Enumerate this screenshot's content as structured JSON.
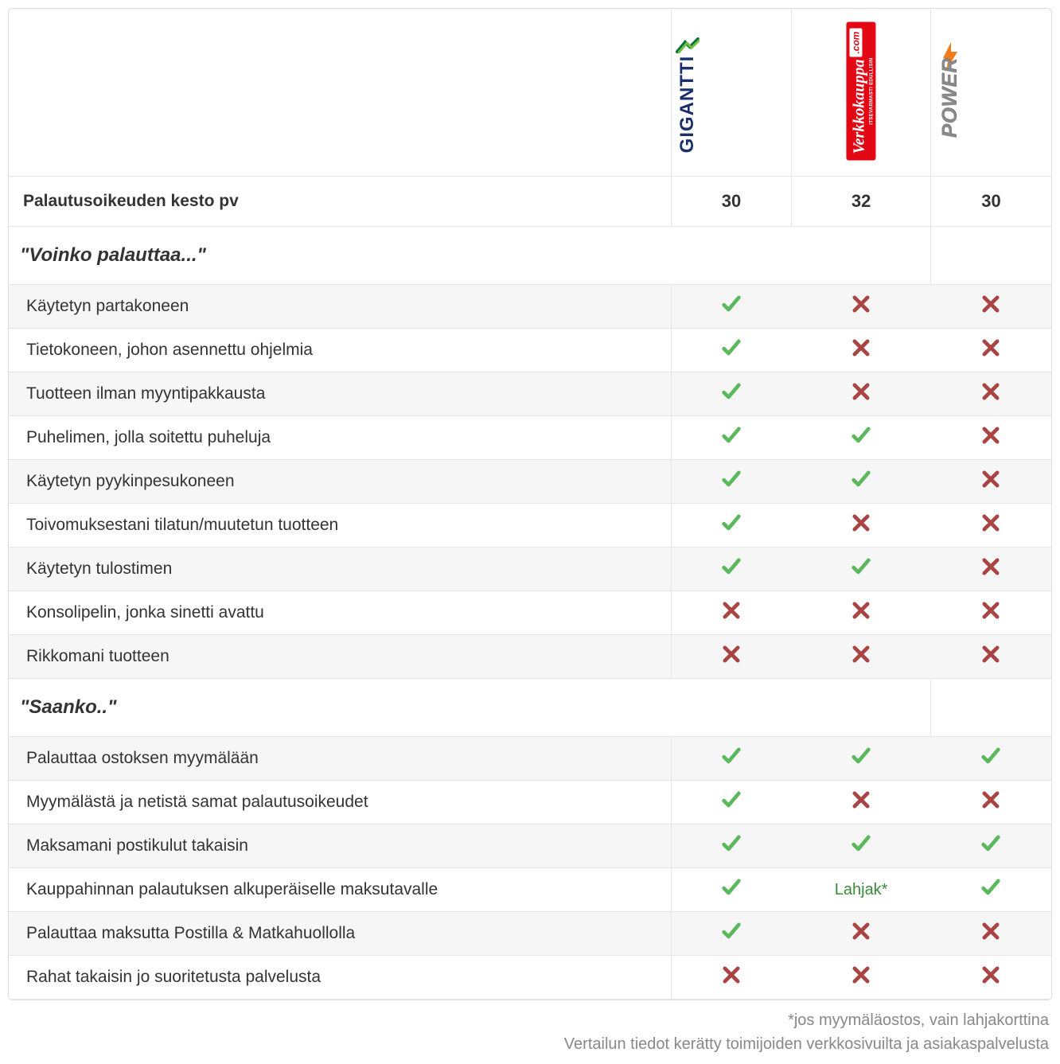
{
  "colors": {
    "check": "#5cb85c",
    "cross": "#a94442",
    "text_value": "#3a8a3a",
    "border": "#e5e5e5",
    "row_odd_bg": "#f6f6f6",
    "row_even_bg": "#ffffff",
    "footnote": "#888888",
    "gigantti_text": "#1a2e6b",
    "gigantti_arrow_dark": "#0a6b3a",
    "gigantti_arrow_light": "#6fbf44",
    "vk_bg": "#e30613",
    "vk_text": "#ffffff",
    "power_text": "#8a8a8a",
    "power_flash": "#f07d1a"
  },
  "brands": {
    "b1": {
      "name": "GIGANTTI"
    },
    "b2": {
      "main": "Verkkokauppa",
      "suffix": ".com",
      "sub": "ITSEVARMASTI EDULLISIN"
    },
    "b3": {
      "name": "POWER"
    }
  },
  "duration": {
    "label": "Palautusoikeuden kesto pv",
    "b1": "30",
    "b2": "32",
    "b3": "30"
  },
  "sections": [
    {
      "title": "\"Voinko palauttaa...\"",
      "rows": [
        {
          "label": "Käytetyn partakoneen",
          "v": [
            "check",
            "cross",
            "cross"
          ]
        },
        {
          "label": "Tietokoneen, johon asennettu ohjelmia",
          "v": [
            "check",
            "cross",
            "cross"
          ]
        },
        {
          "label": "Tuotteen ilman myyntipakkausta",
          "v": [
            "check",
            "cross",
            "cross"
          ]
        },
        {
          "label": "Puhelimen, jolla soitettu puheluja",
          "v": [
            "check",
            "check",
            "cross"
          ]
        },
        {
          "label": "Käytetyn pyykinpesukoneen",
          "v": [
            "check",
            "check",
            "cross"
          ]
        },
        {
          "label": "Toivomuksestani tilatun/muutetun tuotteen",
          "v": [
            "check",
            "cross",
            "cross"
          ]
        },
        {
          "label": "Käytetyn tulostimen",
          "v": [
            "check",
            "check",
            "cross"
          ]
        },
        {
          "label": "Konsolipelin, jonka sinetti avattu",
          "v": [
            "cross",
            "cross",
            "cross"
          ]
        },
        {
          "label": "Rikkomani tuotteen",
          "v": [
            "cross",
            "cross",
            "cross"
          ]
        }
      ]
    },
    {
      "title": "\"Saanko..\"",
      "rows": [
        {
          "label": "Palauttaa ostoksen myymälään",
          "v": [
            "check",
            "check",
            "check"
          ]
        },
        {
          "label": "Myymälästä ja netistä samat palautusoikeudet",
          "v": [
            "check",
            "cross",
            "cross"
          ]
        },
        {
          "label": "Maksamani postikulut takaisin",
          "v": [
            "check",
            "check",
            "check"
          ]
        },
        {
          "label": "Kauppahinnan palautuksen alkuperäiselle maksutavalle",
          "v": [
            "check",
            "text:Lahjak*",
            "check"
          ]
        },
        {
          "label": "Palauttaa maksutta Postilla & Matkahuollolla",
          "v": [
            "check",
            "cross",
            "cross"
          ]
        },
        {
          "label": "Rahat takaisin jo suoritetusta palvelusta",
          "v": [
            "cross",
            "cross",
            "cross"
          ]
        }
      ]
    }
  ],
  "footnote": {
    "line1": "*jos myymäläostos, vain lahjakorttina",
    "line2": "Vertailun tiedot kerätty toimijoiden verkkosivuilta ja asiakaspalvelusta"
  }
}
